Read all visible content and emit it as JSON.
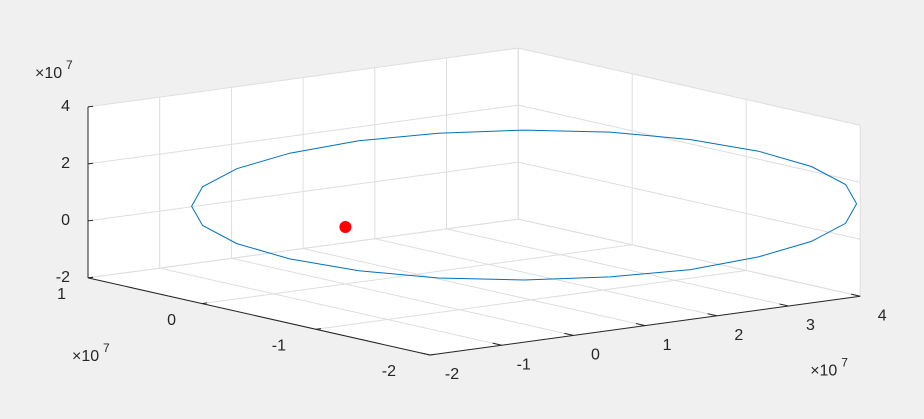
{
  "chart_data": {
    "type": "line3d",
    "grid": true,
    "xlim": [
      -2,
      4
    ],
    "xticks": [
      -2,
      -1,
      0,
      1,
      2,
      3,
      4
    ],
    "ylim": [
      -2,
      1
    ],
    "yticks": [
      -2,
      -1,
      0,
      1
    ],
    "zlim": [
      -2,
      4
    ],
    "zticks": [
      -2,
      0,
      2,
      4
    ],
    "x_multiplier": {
      "base": "×10",
      "power": "7"
    },
    "y_multiplier": {
      "base": "×10",
      "power": "7"
    },
    "z_multiplier": {
      "base": "×10",
      "power": "7"
    },
    "series": [
      {
        "type": "line",
        "color": "#0072bd",
        "x": [
          3.95,
          3.86,
          3.59,
          3.17,
          2.62,
          1.99,
          1.3,
          0.61,
          -0.02,
          -0.57,
          -0.99,
          -1.26,
          -1.35,
          -1.26,
          -0.99,
          -0.57,
          -0.02,
          0.61,
          1.3,
          1.99,
          2.62,
          3.17,
          3.59,
          3.86,
          3.95
        ],
        "y": [
          -2.0,
          -1.96,
          -1.83,
          -1.63,
          -1.38,
          -1.07,
          -0.75,
          -0.43,
          -0.13,
          0.13,
          0.33,
          0.46,
          0.5,
          0.46,
          0.33,
          0.13,
          -0.13,
          -0.43,
          -0.75,
          -1.07,
          -1.38,
          -1.63,
          -1.83,
          -1.96,
          -2.0
        ],
        "z": [
          1.26,
          1.93,
          2.54,
          3.04,
          3.41,
          3.61,
          3.63,
          3.47,
          3.15,
          2.67,
          2.09,
          1.43,
          0.74,
          0.07,
          -0.54,
          -1.04,
          -1.41,
          -1.61,
          -1.63,
          -1.47,
          -1.15,
          -0.67,
          -0.09,
          0.57,
          1.26
        ]
      },
      {
        "type": "scatter",
        "color": "#ff0000",
        "x": [
          0
        ],
        "y": [
          0
        ],
        "z": [
          0
        ]
      }
    ]
  }
}
